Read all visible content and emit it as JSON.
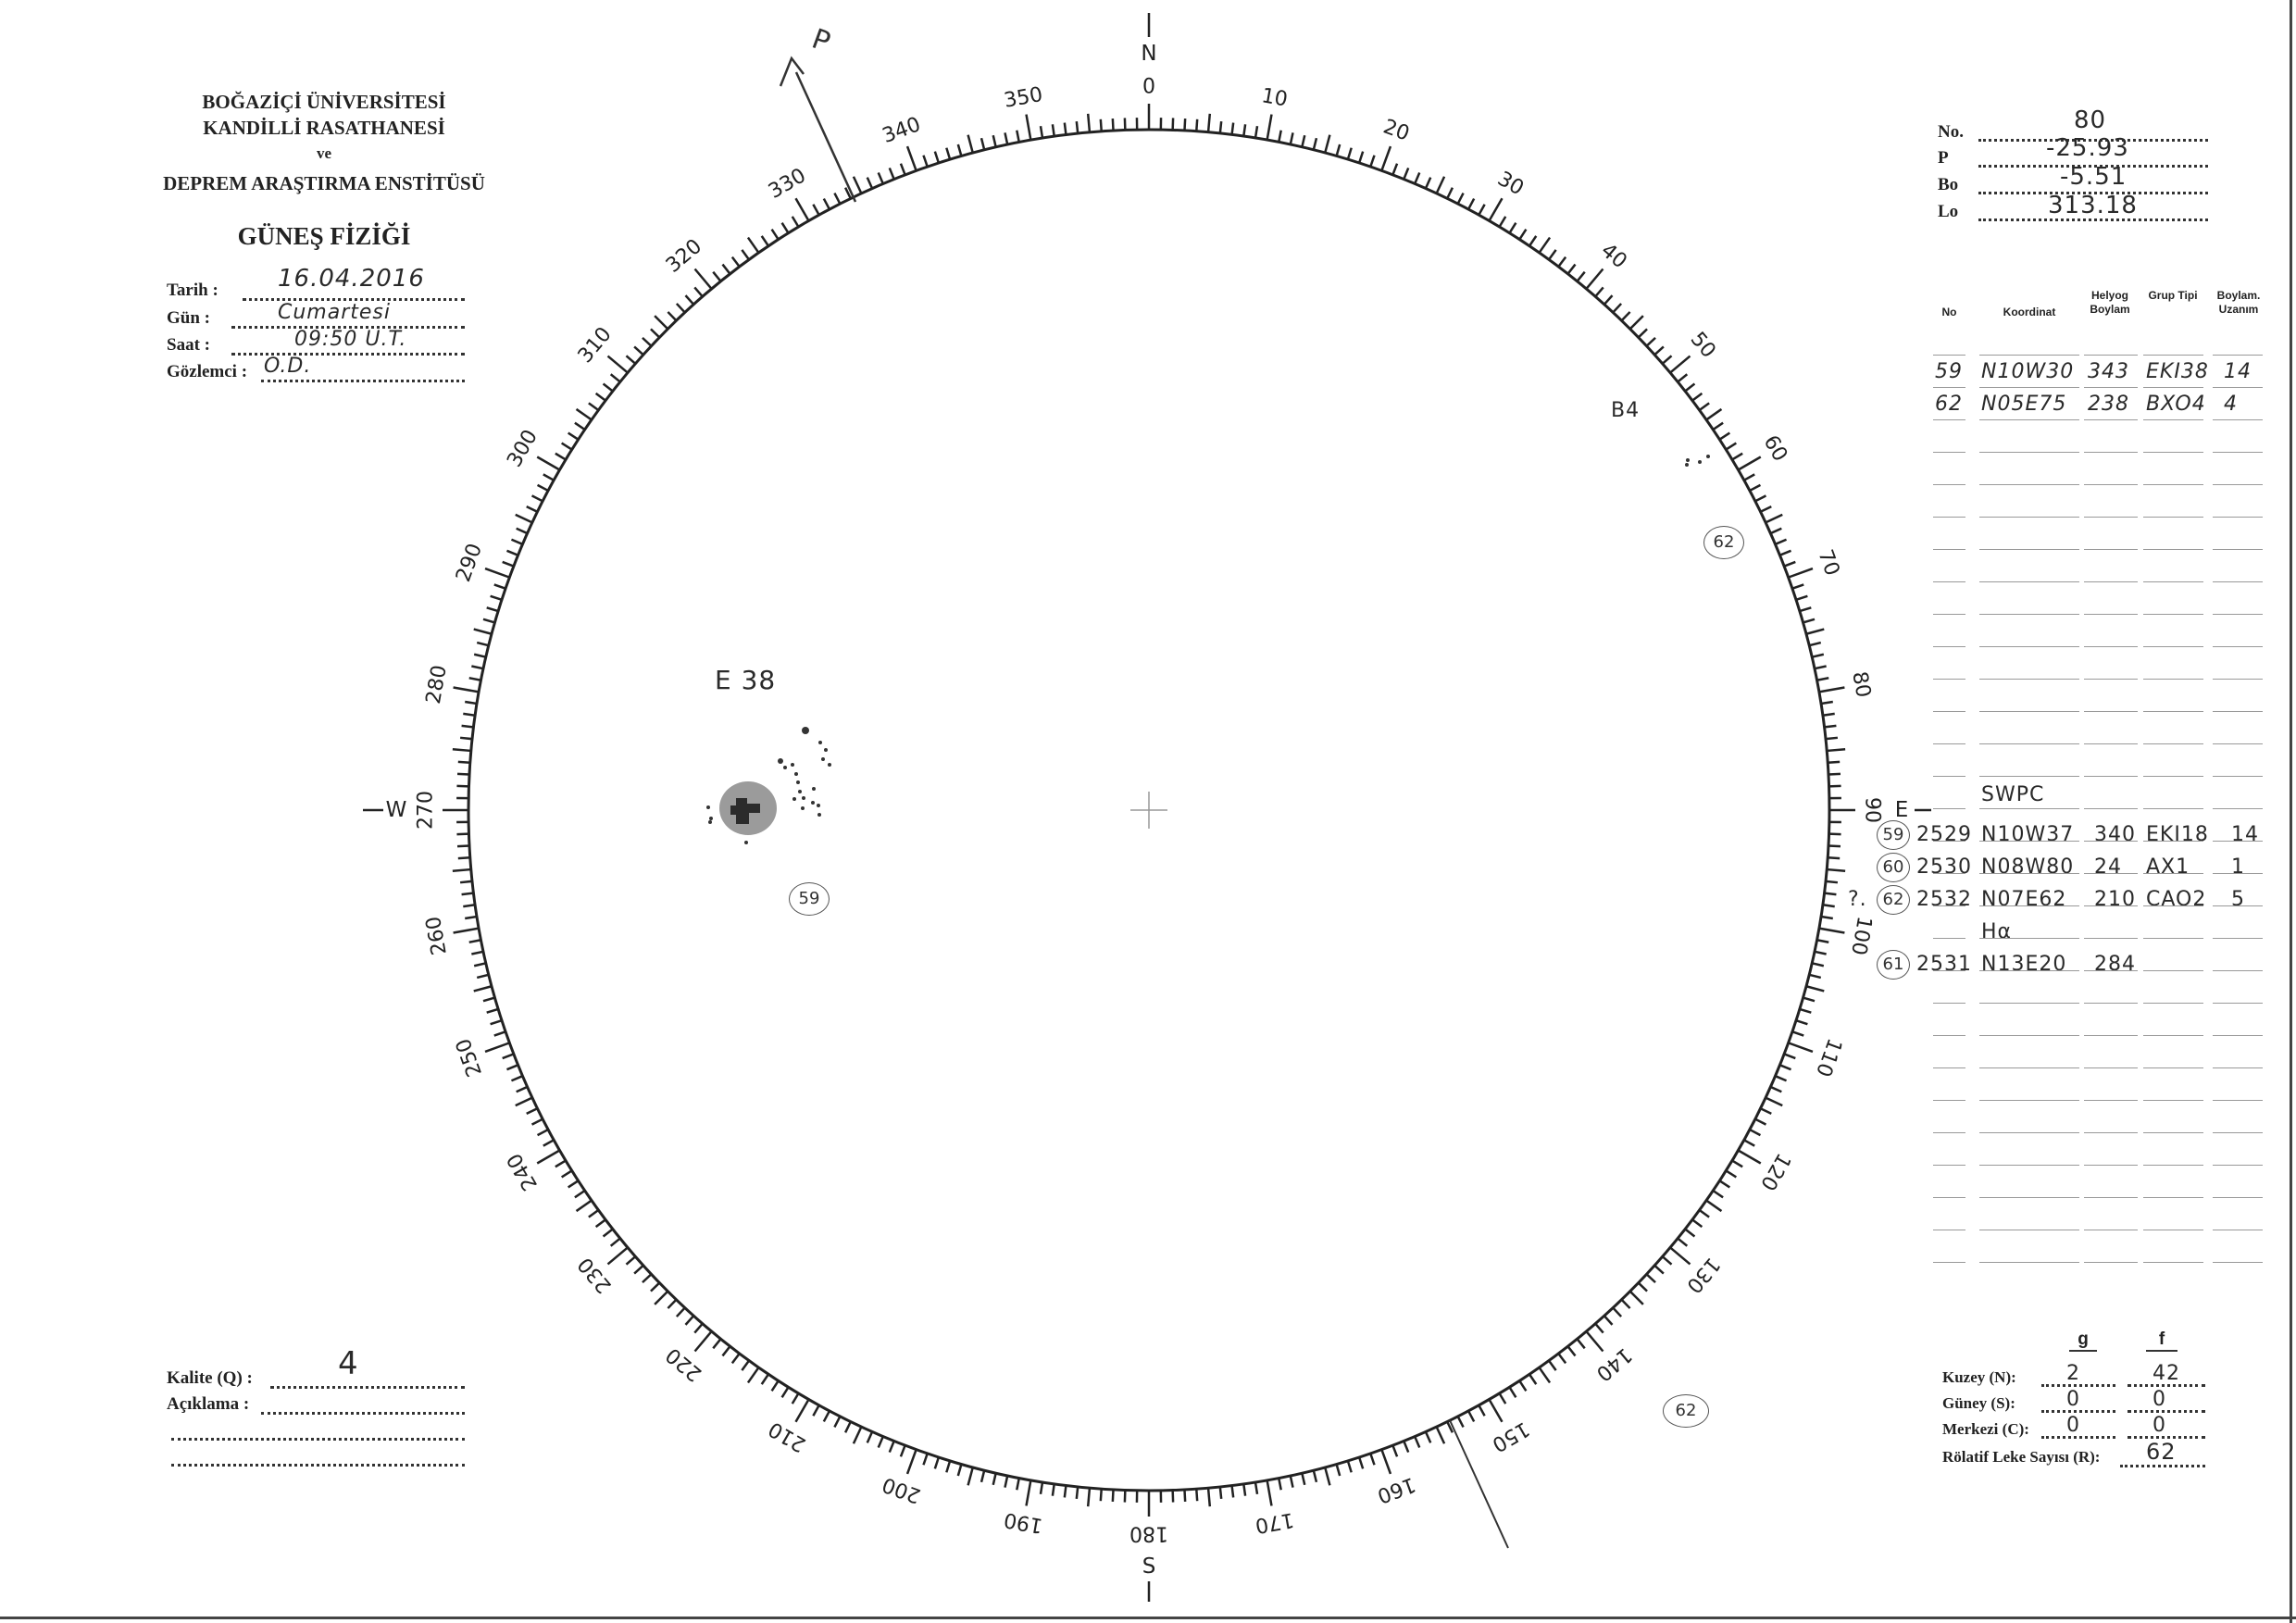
{
  "header": {
    "institution": [
      "BOĞAZİÇİ ÜNİVERSİTESİ",
      "KANDİLLİ RASATHANESİ",
      "ve",
      "DEPREM ARAŞTIRMA ENSTİTÜSÜ"
    ],
    "department": "GÜNEŞ FİZİĞİ"
  },
  "observation": {
    "fields": [
      {
        "label": "Tarih :",
        "value": "16.04.2016"
      },
      {
        "label": "Gün :",
        "value": "Cumartesi"
      },
      {
        "label": "Saat :",
        "value": "09:50 U.T."
      },
      {
        "label": "Gözlemci :",
        "value": "O.D."
      }
    ]
  },
  "ephemeris": {
    "fields": [
      {
        "label": "No.",
        "value": "80"
      },
      {
        "label": "P",
        "value": "-25.93"
      },
      {
        "label": "Bo",
        "value": "-5.51"
      },
      {
        "label": "Lo",
        "value": "313.18"
      }
    ]
  },
  "groups_table": {
    "headers": [
      "No",
      "Koordinat",
      "Helyog Boylam",
      "Grup Tipi",
      "Boylam. Uzanım"
    ],
    "rows": [
      [
        "59",
        "N10W30",
        "343",
        "EKI38",
        "14"
      ],
      [
        "62",
        "N05E75",
        "238",
        "BXO4",
        "4"
      ]
    ],
    "swpc_title": "SWPC",
    "swpc_rows": [
      {
        "ref": "59",
        "noaa": "2529",
        "coord": "N10W37",
        "long": "340",
        "type": "EKI18",
        "ext": "14",
        "note": ""
      },
      {
        "ref": "60",
        "noaa": "2530",
        "coord": "N08W80",
        "long": "24",
        "type": "AX1",
        "ext": "1",
        "note": ""
      },
      {
        "ref": "62",
        "noaa": "2532",
        "coord": "N07E62",
        "long": "210",
        "type": "CAO2",
        "ext": "5",
        "note": "?."
      },
      {
        "ref": "",
        "noaa": "",
        "coord": "Hα",
        "long": "",
        "type": "",
        "ext": "",
        "note": ""
      },
      {
        "ref": "61",
        "noaa": "2531",
        "coord": "N13E20",
        "long": "284",
        "type": "",
        "ext": "",
        "note": ""
      }
    ]
  },
  "counts": {
    "col_g": "g",
    "col_f": "f",
    "rows": [
      {
        "label": "Kuzey (N):",
        "g": "2",
        "f": "42"
      },
      {
        "label": "Güney (S):",
        "g": "0",
        "f": "0"
      },
      {
        "label": "Merkezi (C):",
        "g": "0",
        "f": "0"
      }
    ],
    "relative_label": "Rölatif Leke Sayısı (R):",
    "relative_value": "62"
  },
  "quality": {
    "label": "Kalite (Q) :",
    "value": "4",
    "remark_label": "Açıklama :"
  },
  "dial": {
    "labels": [
      "0",
      "10",
      "20",
      "30",
      "40",
      "50",
      "60",
      "70",
      "80",
      "90",
      "100",
      "110",
      "120",
      "130",
      "140",
      "150",
      "160",
      "170",
      "180",
      "190",
      "200",
      "210",
      "220",
      "230",
      "240",
      "250",
      "260",
      "270",
      "280",
      "290",
      "300",
      "310",
      "320",
      "330",
      "340",
      "350"
    ],
    "north": "N",
    "east": "E",
    "south": "S",
    "west": "W",
    "p_axis_label": "P"
  },
  "annotations": {
    "group59_label": "59",
    "group59_type": "E 38",
    "group62_label": "62",
    "group62_type": "B4",
    "group62_bottom_label": "62"
  }
}
